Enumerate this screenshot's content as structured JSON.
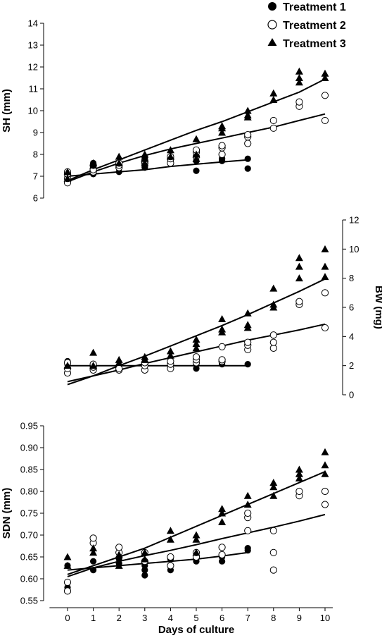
{
  "legend": {
    "position": "top-right",
    "entries": [
      {
        "label": "Treatment 1",
        "marker": "filled-circle"
      },
      {
        "label": "Treatment 2",
        "marker": "open-circle"
      },
      {
        "label": "Treatment 3",
        "marker": "filled-triangle"
      }
    ]
  },
  "xaxis": {
    "title": "Days of culture",
    "ticks": [
      0,
      1,
      2,
      3,
      4,
      5,
      6,
      7,
      8,
      9,
      10
    ],
    "range": [
      -0.7,
      10.3
    ]
  },
  "colors": {
    "ink": "#000000",
    "background": "#ffffff"
  },
  "chart_data": [
    {
      "type": "scatter",
      "id": "sh",
      "ylabel": "SH (mm)",
      "yaxis_side": "left",
      "ylim": [
        6,
        14
      ],
      "yticks": [
        6,
        7,
        8,
        9,
        10,
        11,
        12,
        13,
        14
      ],
      "grid": false,
      "series": [
        {
          "name": "Treatment 1",
          "marker": "filled-circle",
          "x": [
            0,
            0,
            0,
            1,
            1,
            2,
            2,
            3,
            3,
            3,
            4,
            4,
            5,
            5,
            5,
            6,
            6,
            6,
            7,
            7
          ],
          "y": [
            7.0,
            6.9,
            7.1,
            7.1,
            7.6,
            7.2,
            7.4,
            7.4,
            7.6,
            7.8,
            7.6,
            7.7,
            7.25,
            7.7,
            7.9,
            7.7,
            7.8,
            7.8,
            7.35,
            7.8
          ],
          "fit": [
            [
              0,
              7.0
            ],
            [
              1,
              7.1
            ],
            [
              2,
              7.2
            ],
            [
              3,
              7.3
            ],
            [
              4,
              7.45
            ],
            [
              5,
              7.55
            ],
            [
              6,
              7.65
            ],
            [
              7,
              7.75
            ]
          ]
        },
        {
          "name": "Treatment 2",
          "marker": "open-circle",
          "x": [
            0,
            0,
            0,
            0,
            1,
            1,
            1,
            2,
            2,
            2,
            3,
            3,
            4,
            4,
            4,
            5,
            5,
            5,
            6,
            6,
            6,
            7,
            7,
            7,
            8,
            8,
            9,
            9,
            10,
            10
          ],
          "y": [
            6.7,
            6.9,
            7.1,
            7.2,
            7.2,
            7.3,
            7.5,
            7.4,
            7.5,
            7.6,
            7.6,
            7.7,
            7.6,
            7.8,
            7.9,
            7.9,
            8.1,
            8.2,
            8.0,
            8.3,
            8.4,
            8.5,
            8.8,
            8.9,
            9.2,
            9.55,
            10.2,
            10.4,
            9.55,
            10.7
          ],
          "fit": [
            [
              0,
              6.75
            ],
            [
              1,
              7.2
            ],
            [
              2,
              7.6
            ],
            [
              3,
              7.95
            ],
            [
              4,
              8.25
            ],
            [
              5,
              8.5
            ],
            [
              6,
              8.75
            ],
            [
              7,
              9.0
            ],
            [
              8,
              9.25
            ],
            [
              9,
              9.55
            ],
            [
              10,
              9.85
            ]
          ]
        },
        {
          "name": "Treatment 3",
          "marker": "filled-triangle",
          "x": [
            0,
            0,
            1,
            1,
            2,
            2,
            3,
            3,
            3,
            4,
            4,
            5,
            5,
            5,
            6,
            6,
            6,
            7,
            7,
            7,
            8,
            8,
            9,
            9,
            9,
            10,
            10
          ],
          "y": [
            6.9,
            7.2,
            7.5,
            7.6,
            7.6,
            7.9,
            7.6,
            7.8,
            8.0,
            7.9,
            8.2,
            7.8,
            8.0,
            8.7,
            9.0,
            9.2,
            9.3,
            9.7,
            9.8,
            10.0,
            10.5,
            10.8,
            11.3,
            11.5,
            11.8,
            11.5,
            11.7
          ],
          "fit": [
            [
              0,
              6.8
            ],
            [
              1,
              7.3
            ],
            [
              2,
              7.75
            ],
            [
              3,
              8.2
            ],
            [
              4,
              8.65
            ],
            [
              5,
              9.1
            ],
            [
              6,
              9.5
            ],
            [
              7,
              9.95
            ],
            [
              8,
              10.4
            ],
            [
              9,
              10.85
            ],
            [
              10,
              11.45
            ]
          ]
        }
      ]
    },
    {
      "type": "scatter",
      "id": "bw",
      "ylabel": "BW (mg)",
      "yaxis_side": "right",
      "ylim": [
        0,
        12
      ],
      "yticks": [
        0,
        2,
        4,
        6,
        8,
        10,
        12
      ],
      "grid": false,
      "series": [
        {
          "name": "Treatment 1",
          "marker": "filled-circle",
          "x": [
            0,
            0,
            0,
            1,
            1,
            2,
            2,
            3,
            3,
            4,
            4,
            5,
            5,
            6,
            6,
            7
          ],
          "y": [
            1.8,
            2.1,
            2.3,
            1.9,
            2.0,
            1.8,
            2.0,
            2.1,
            2.2,
            2.2,
            2.3,
            1.8,
            2.1,
            2.1,
            2.2,
            2.1
          ],
          "fit": [
            [
              0,
              2.0
            ],
            [
              7,
              2.0
            ]
          ]
        },
        {
          "name": "Treatment 2",
          "marker": "open-circle",
          "x": [
            0,
            0,
            0,
            1,
            1,
            1,
            2,
            2,
            3,
            3,
            3,
            4,
            4,
            4,
            5,
            5,
            5,
            6,
            6,
            6,
            7,
            7,
            7,
            8,
            8,
            8,
            9,
            9,
            10,
            10
          ],
          "y": [
            1.5,
            1.8,
            2.2,
            1.7,
            1.9,
            2.1,
            1.7,
            1.8,
            1.7,
            2.0,
            2.2,
            1.8,
            2.1,
            2.3,
            2.2,
            2.4,
            2.6,
            2.3,
            2.4,
            3.3,
            3.1,
            3.4,
            3.6,
            3.2,
            3.6,
            4.1,
            6.2,
            6.4,
            4.6,
            7.0
          ],
          "fit": [
            [
              0,
              0.9
            ],
            [
              1,
              1.3
            ],
            [
              2,
              1.7
            ],
            [
              3,
              2.15
            ],
            [
              4,
              2.55
            ],
            [
              5,
              2.95
            ],
            [
              6,
              3.35
            ],
            [
              7,
              3.75
            ],
            [
              8,
              4.1
            ],
            [
              9,
              4.45
            ],
            [
              10,
              4.85
            ]
          ]
        },
        {
          "name": "Treatment 3",
          "marker": "filled-triangle",
          "x": [
            0,
            1,
            1,
            2,
            2,
            3,
            3,
            4,
            4,
            5,
            5,
            5,
            6,
            6,
            6,
            7,
            7,
            7,
            8,
            8,
            8,
            9,
            9,
            9,
            10,
            10,
            10
          ],
          "y": [
            2.0,
            2.0,
            2.9,
            2.2,
            2.4,
            2.4,
            2.6,
            2.7,
            3.0,
            3.2,
            3.5,
            3.8,
            4.3,
            4.5,
            5.2,
            4.6,
            4.8,
            5.6,
            6.0,
            6.2,
            7.3,
            8.0,
            8.8,
            9.4,
            8.1,
            8.8,
            10.0
          ],
          "fit": [
            [
              0,
              0.7
            ],
            [
              1,
              1.3
            ],
            [
              2,
              2.0
            ],
            [
              3,
              2.65
            ],
            [
              4,
              3.35
            ],
            [
              5,
              4.05
            ],
            [
              6,
              4.75
            ],
            [
              7,
              5.5
            ],
            [
              8,
              6.3
            ],
            [
              9,
              7.1
            ],
            [
              10,
              7.95
            ]
          ]
        }
      ]
    },
    {
      "type": "scatter",
      "id": "sdn",
      "ylabel": "SDN (mm)",
      "yaxis_side": "left",
      "ylim": [
        0.55,
        0.95
      ],
      "yticks": [
        0.55,
        0.6,
        0.65,
        0.7,
        0.75,
        0.8,
        0.85,
        0.9,
        0.95
      ],
      "grid": false,
      "series": [
        {
          "name": "Treatment 1",
          "marker": "filled-circle",
          "x": [
            0,
            0,
            1,
            1,
            2,
            2,
            3,
            3,
            3,
            4,
            4,
            5,
            5,
            6,
            6,
            7,
            7
          ],
          "y": [
            0.58,
            0.63,
            0.62,
            0.64,
            0.635,
            0.645,
            0.608,
            0.62,
            0.63,
            0.62,
            0.645,
            0.64,
            0.65,
            0.64,
            0.65,
            0.665,
            0.67
          ],
          "fit": [
            [
              0,
              0.62
            ],
            [
              1,
              0.625
            ],
            [
              2,
              0.63
            ],
            [
              3,
              0.635
            ],
            [
              4,
              0.64
            ],
            [
              5,
              0.645
            ],
            [
              6,
              0.652
            ],
            [
              7,
              0.66
            ]
          ]
        },
        {
          "name": "Treatment 2",
          "marker": "open-circle",
          "x": [
            0,
            0,
            1,
            1,
            2,
            2,
            3,
            3,
            4,
            4,
            5,
            5,
            6,
            6,
            7,
            7,
            7,
            8,
            8,
            8,
            9,
            9,
            10,
            10
          ],
          "y": [
            0.572,
            0.592,
            0.682,
            0.693,
            0.66,
            0.672,
            0.64,
            0.66,
            0.63,
            0.65,
            0.65,
            0.66,
            0.655,
            0.672,
            0.71,
            0.74,
            0.75,
            0.62,
            0.66,
            0.71,
            0.79,
            0.8,
            0.77,
            0.8
          ],
          "fit": [
            [
              0,
              0.605
            ],
            [
              1,
              0.625
            ],
            [
              2,
              0.64
            ],
            [
              3,
              0.653
            ],
            [
              4,
              0.665
            ],
            [
              5,
              0.678
            ],
            [
              6,
              0.692
            ],
            [
              7,
              0.705
            ],
            [
              8,
              0.718
            ],
            [
              9,
              0.732
            ],
            [
              10,
              0.747
            ]
          ]
        },
        {
          "name": "Treatment 3",
          "marker": "filled-triangle",
          "x": [
            0,
            0,
            1,
            1,
            2,
            2,
            3,
            3,
            4,
            4,
            5,
            5,
            5,
            6,
            6,
            6,
            7,
            7,
            8,
            8,
            8,
            9,
            9,
            9,
            10,
            10,
            10
          ],
          "y": [
            0.63,
            0.65,
            0.66,
            0.67,
            0.63,
            0.655,
            0.645,
            0.66,
            0.69,
            0.71,
            0.66,
            0.69,
            0.7,
            0.73,
            0.75,
            0.76,
            0.77,
            0.79,
            0.79,
            0.81,
            0.82,
            0.83,
            0.84,
            0.85,
            0.84,
            0.86,
            0.89
          ],
          "fit": [
            [
              0,
              0.61
            ],
            [
              1,
              0.63
            ],
            [
              2,
              0.65
            ],
            [
              3,
              0.67
            ],
            [
              4,
              0.695
            ],
            [
              5,
              0.72
            ],
            [
              6,
              0.745
            ],
            [
              7,
              0.77
            ],
            [
              8,
              0.795
            ],
            [
              9,
              0.82
            ],
            [
              10,
              0.845
            ]
          ]
        }
      ]
    }
  ]
}
